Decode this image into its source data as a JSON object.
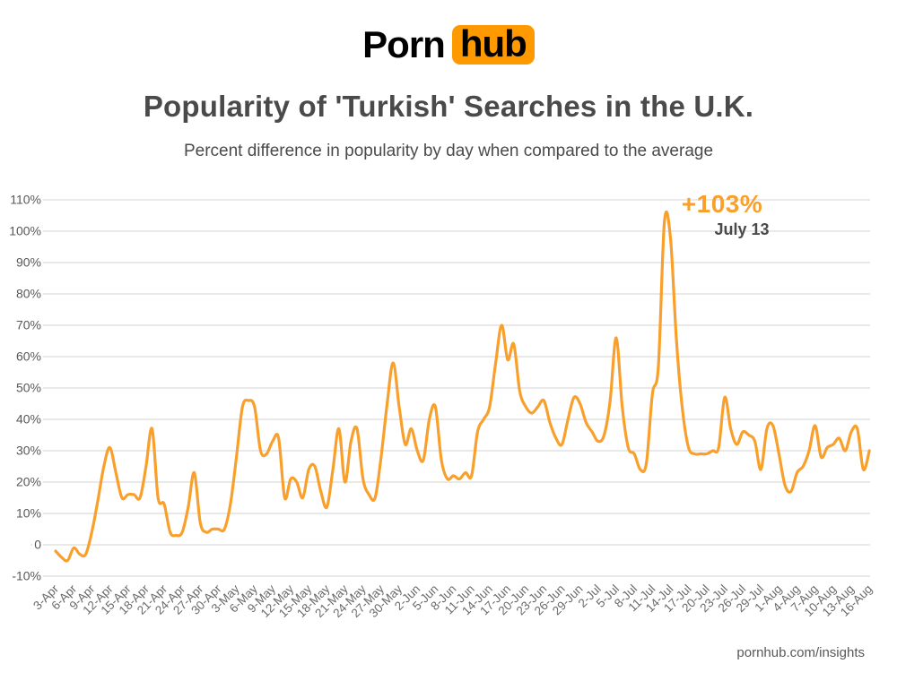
{
  "logo": {
    "part1": "Porn",
    "part2": "hub"
  },
  "header": {
    "title": "Popularity of 'Turkish' Searches in the U.K.",
    "subtitle": "Percent difference in popularity by day when compared to the average"
  },
  "annotation": {
    "value": "+103%",
    "date": "July 13"
  },
  "footer": {
    "site": "pornhub.com/insights"
  },
  "colors": {
    "line": "#F8A02B",
    "logo_box": "#FF9900",
    "annotation_orange": "#F8A02B",
    "title_gray": "#4A4A4A",
    "grid": "#DCDCDC",
    "tick_gray": "#6A6A6A"
  },
  "chart_data": {
    "type": "line",
    "title": "Popularity of 'Turkish' Searches in the U.K.",
    "subtitle": "Percent difference in popularity by day when compared to the average",
    "series_name": "Percent difference in popularity vs average",
    "grid": "horizontal-only",
    "legend": "none",
    "ylim": [
      -10,
      110
    ],
    "y_tick_labels": [
      "110%",
      "100%",
      "90%",
      "80%",
      "70%",
      "60%",
      "50%",
      "40%",
      "30%",
      "20%",
      "10%",
      "0",
      "-10%"
    ],
    "y_tick_values": [
      110,
      100,
      90,
      80,
      70,
      60,
      50,
      40,
      30,
      20,
      10,
      0,
      -10
    ],
    "x_tick_labels": [
      "3-Apr",
      "6-Apr",
      "9-Apr",
      "12-Apr",
      "15-Apr",
      "18-Apr",
      "21-Apr",
      "24-Apr",
      "27-Apr",
      "30-Apr",
      "3-May",
      "6-May",
      "9-May",
      "12-May",
      "15-May",
      "18-May",
      "21-May",
      "24-May",
      "27-May",
      "30-May",
      "2-Jun",
      "5-Jun",
      "8-Jun",
      "11-Jun",
      "14-Jun",
      "17-Jun",
      "20-Jun",
      "23-Jun",
      "26-Jun",
      "29-Jun",
      "2-Jul",
      "5-Jul",
      "8-Jul",
      "11-Jul",
      "14-Jul",
      "17-Jul",
      "20-Jul",
      "23-Jul",
      "26-Jul",
      "29-Jul",
      "1-Aug",
      "4-Aug",
      "7-Aug",
      "10-Aug",
      "13-Aug",
      "16-Aug"
    ],
    "annotation": {
      "date": "13-Jul",
      "value": 103,
      "label": "+103%",
      "sublabel": "July 13"
    },
    "line_color": "#F8A02B",
    "dates": [
      "3-Apr",
      "4-Apr",
      "5-Apr",
      "6-Apr",
      "7-Apr",
      "8-Apr",
      "9-Apr",
      "10-Apr",
      "11-Apr",
      "12-Apr",
      "13-Apr",
      "14-Apr",
      "15-Apr",
      "16-Apr",
      "17-Apr",
      "18-Apr",
      "19-Apr",
      "20-Apr",
      "21-Apr",
      "22-Apr",
      "23-Apr",
      "24-Apr",
      "25-Apr",
      "26-Apr",
      "27-Apr",
      "28-Apr",
      "29-Apr",
      "30-Apr",
      "1-May",
      "2-May",
      "3-May",
      "4-May",
      "5-May",
      "6-May",
      "7-May",
      "8-May",
      "9-May",
      "10-May",
      "11-May",
      "12-May",
      "13-May",
      "14-May",
      "15-May",
      "16-May",
      "17-May",
      "18-May",
      "19-May",
      "20-May",
      "21-May",
      "22-May",
      "23-May",
      "24-May",
      "25-May",
      "26-May",
      "27-May",
      "28-May",
      "29-May",
      "30-May",
      "31-May",
      "1-Jun",
      "2-Jun",
      "3-Jun",
      "4-Jun",
      "5-Jun",
      "6-Jun",
      "7-Jun",
      "8-Jun",
      "9-Jun",
      "10-Jun",
      "11-Jun",
      "12-Jun",
      "13-Jun",
      "14-Jun",
      "15-Jun",
      "16-Jun",
      "17-Jun",
      "18-Jun",
      "19-Jun",
      "20-Jun",
      "21-Jun",
      "22-Jun",
      "23-Jun",
      "24-Jun",
      "25-Jun",
      "26-Jun",
      "27-Jun",
      "28-Jun",
      "29-Jun",
      "30-Jun",
      "1-Jul",
      "2-Jul",
      "3-Jul",
      "4-Jul",
      "5-Jul",
      "6-Jul",
      "7-Jul",
      "8-Jul",
      "9-Jul",
      "10-Jul",
      "11-Jul",
      "12-Jul",
      "13-Jul",
      "14-Jul",
      "15-Jul",
      "16-Jul",
      "17-Jul",
      "18-Jul",
      "19-Jul",
      "20-Jul",
      "21-Jul",
      "22-Jul",
      "23-Jul",
      "24-Jul",
      "25-Jul",
      "26-Jul",
      "27-Jul",
      "28-Jul",
      "29-Jul",
      "30-Jul",
      "31-Jul",
      "1-Aug",
      "2-Aug",
      "3-Aug",
      "4-Aug",
      "5-Aug",
      "6-Aug",
      "7-Aug",
      "8-Aug",
      "9-Aug",
      "10-Aug",
      "11-Aug",
      "12-Aug",
      "13-Aug",
      "14-Aug",
      "15-Aug",
      "16-Aug"
    ],
    "values": [
      -2,
      -4,
      -5,
      -1,
      -3,
      -3,
      4,
      14,
      25,
      31,
      23,
      15,
      16,
      16,
      15,
      25,
      37,
      15,
      13,
      4,
      3,
      4,
      12,
      23,
      7,
      4,
      5,
      5,
      5,
      13,
      28,
      44,
      46,
      44,
      30,
      29,
      33,
      34,
      15,
      21,
      20,
      15,
      24,
      25,
      17,
      12,
      24,
      37,
      20,
      33,
      37,
      21,
      16,
      15,
      28,
      45,
      58,
      44,
      32,
      37,
      30,
      27,
      40,
      44,
      27,
      21,
      22,
      21,
      23,
      22,
      36,
      40,
      44,
      58,
      70,
      59,
      64,
      49,
      44,
      42,
      44,
      46,
      39,
      34,
      32,
      40,
      47,
      45,
      39,
      36,
      33,
      35,
      46,
      66,
      44,
      31,
      29,
      24,
      26,
      48,
      57,
      103,
      98,
      65,
      43,
      31,
      29,
      29,
      29,
      30,
      31,
      47,
      37,
      32,
      36,
      35,
      33,
      24,
      37,
      38,
      29,
      19,
      17,
      23,
      25,
      30,
      38,
      28,
      31,
      32,
      34,
      30,
      36,
      37,
      24,
      30
    ]
  }
}
